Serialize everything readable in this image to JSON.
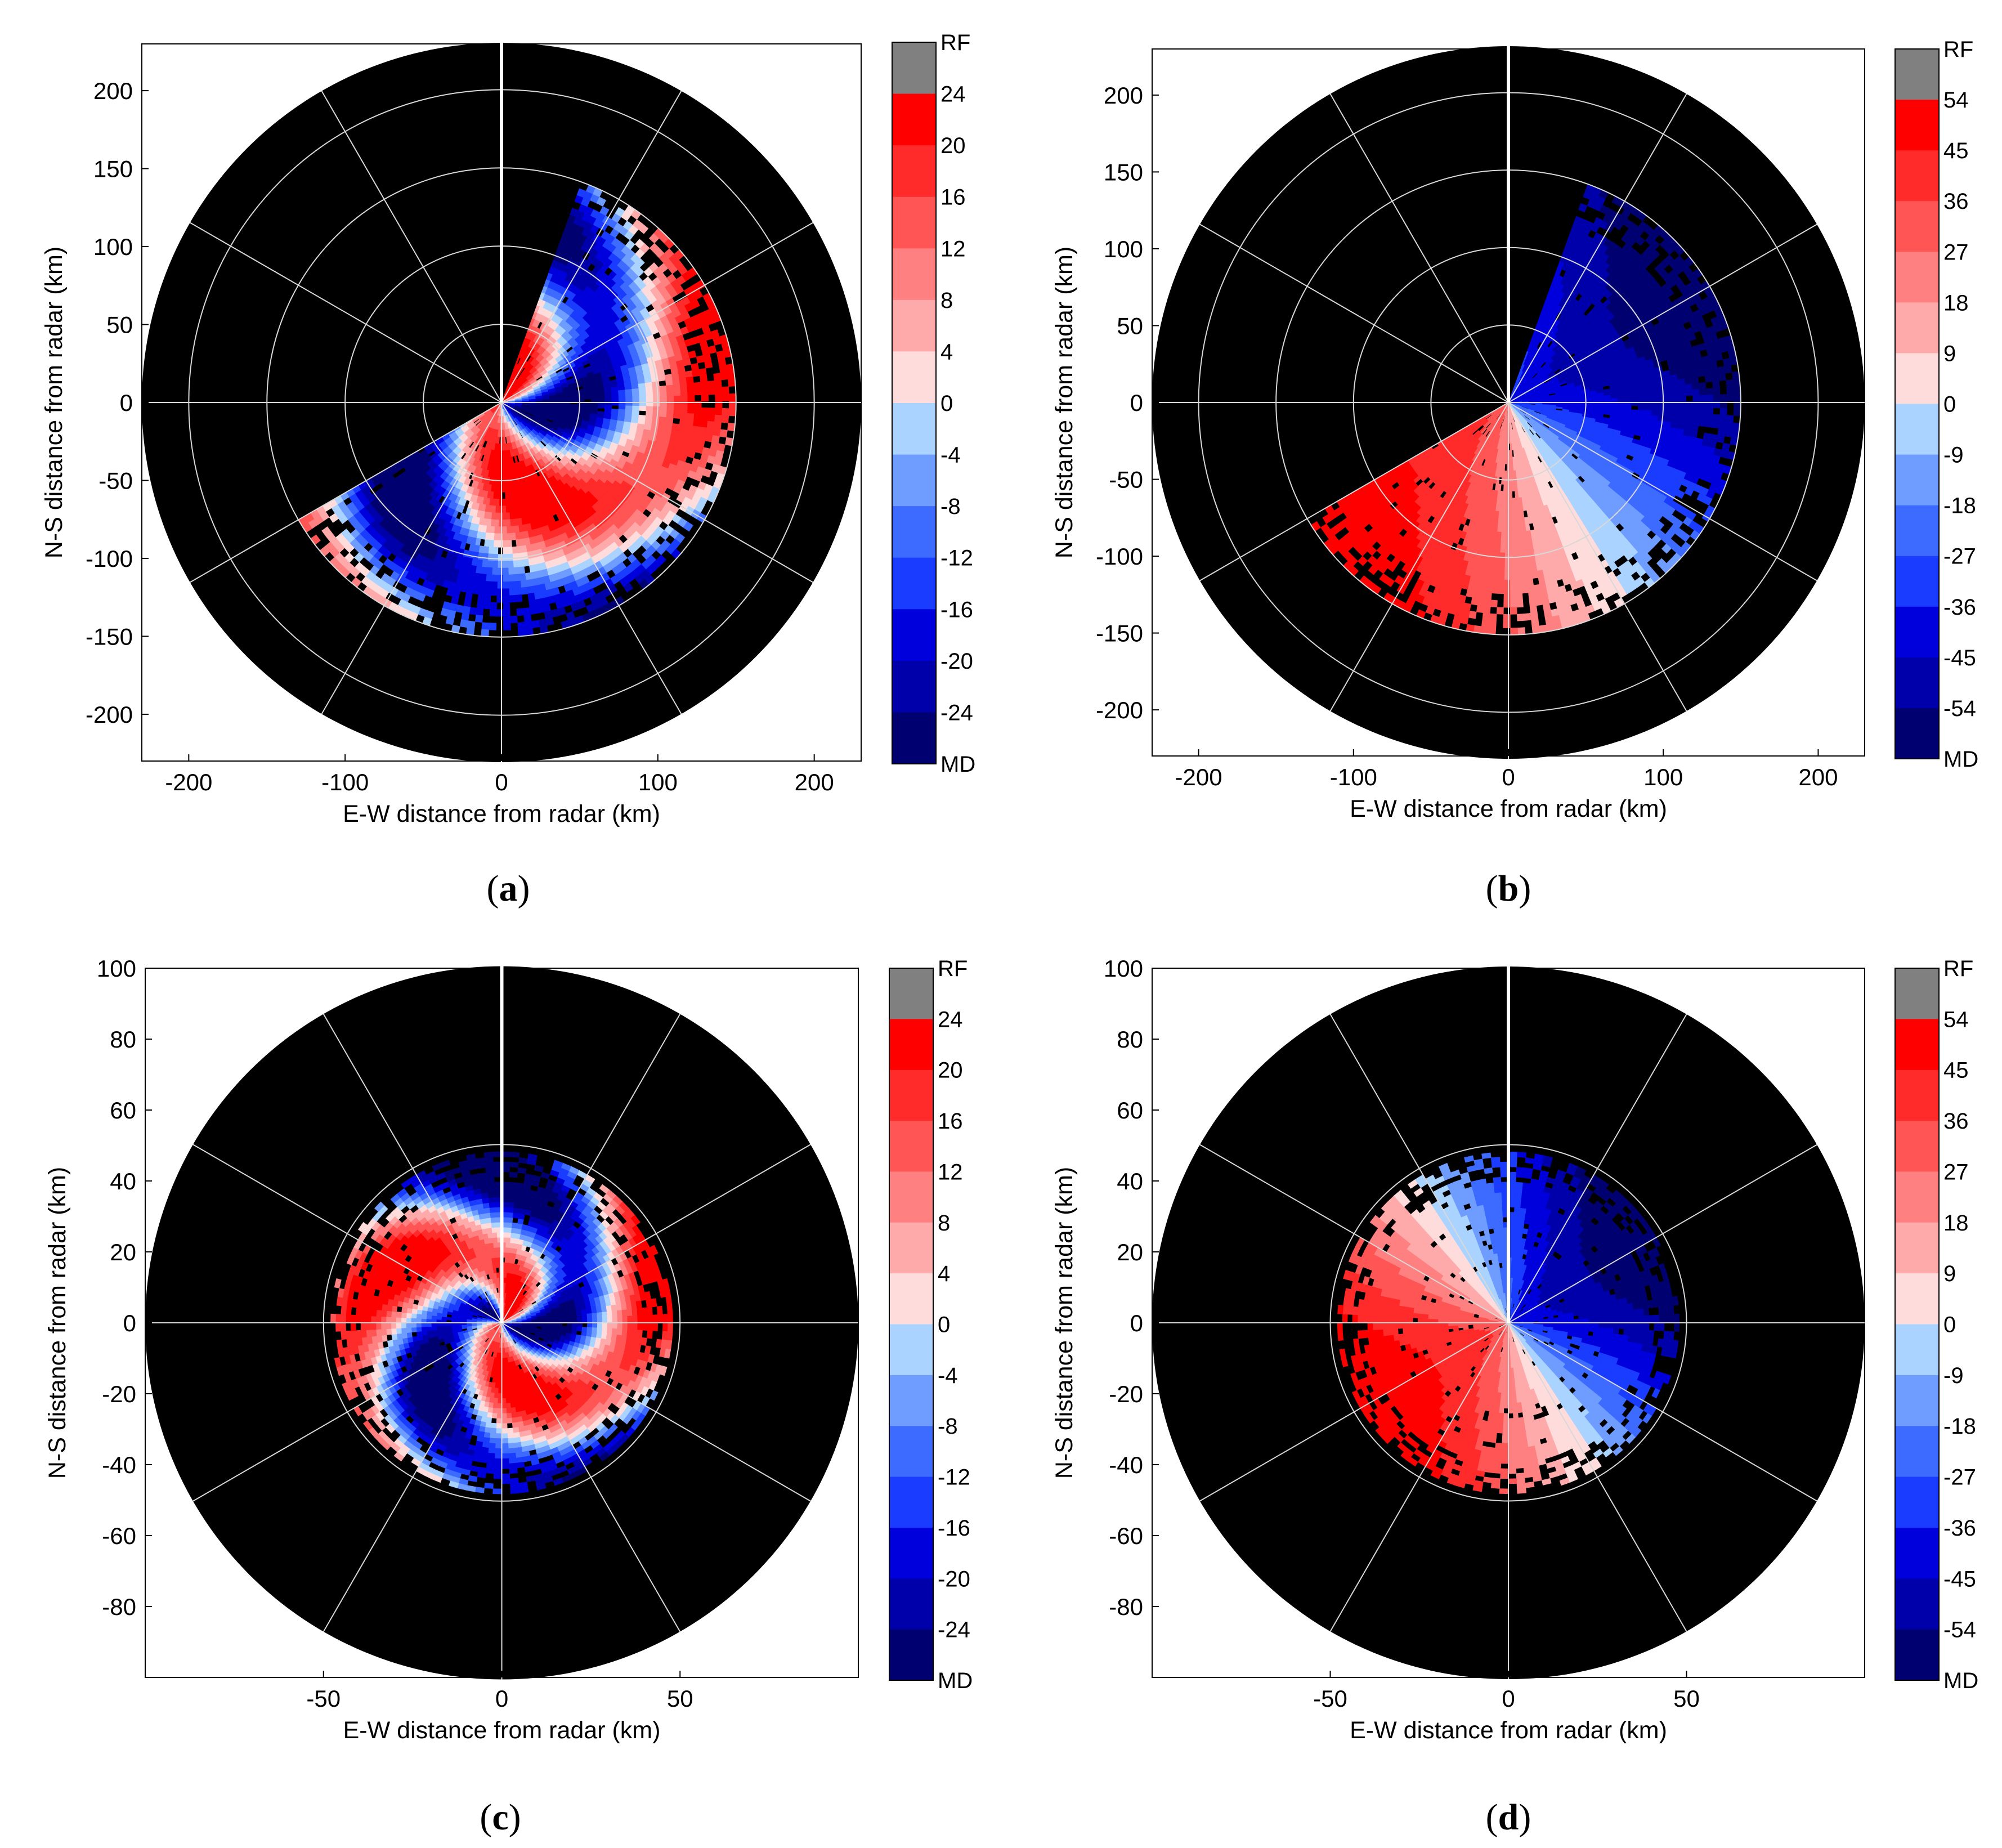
{
  "colors": {
    "plot_bg": "#000000",
    "grid": "#d8d8d8",
    "rf": "#808080",
    "md": "#000000",
    "radial_mark": "#ffffff",
    "positive_palette": [
      "#ffdcdc",
      "#ffaaaa",
      "#ff8080",
      "#ff5555",
      "#ff2a2a",
      "#ff0000"
    ],
    "negative_palette": [
      "#aad4ff",
      "#6f9cff",
      "#3d6bff",
      "#1a3cff",
      "#0000dd",
      "#0000aa",
      "#000070"
    ]
  },
  "chart_data": [
    {
      "panel": "a",
      "label_text": "a",
      "type": "heatmap",
      "xlabel": "E-W distance from radar (km)",
      "ylabel": "N-S distance from radar (km)",
      "xticks": [
        -200,
        -100,
        0,
        100,
        200
      ],
      "yticks": [
        200,
        150,
        100,
        50,
        0,
        -50,
        -100,
        -150,
        -200
      ],
      "xlim": [
        -230,
        230
      ],
      "ylim": [
        -230,
        230
      ],
      "range_rings_km": [
        50,
        100,
        150,
        200
      ],
      "radial_spokes_deg": [
        0,
        30,
        60,
        90,
        120,
        150,
        180,
        210,
        240,
        270,
        300,
        330
      ],
      "colorbar": [
        "RF",
        "24",
        "20",
        "16",
        "12",
        "8",
        "4",
        "0",
        "-4",
        "-8",
        "-12",
        "-16",
        "-20",
        "-24",
        "MD"
      ],
      "echo_extent": {
        "az_start_deg": 20,
        "az_end_deg": 240,
        "max_range_km": 150
      },
      "pattern": "mixed"
    },
    {
      "panel": "b",
      "label_text": "b",
      "type": "heatmap",
      "xlabel": "E-W distance from radar (km)",
      "ylabel": "N-S distance from radar (km)",
      "xticks": [
        -200,
        -100,
        0,
        100,
        200
      ],
      "yticks": [
        200,
        150,
        100,
        50,
        0,
        -50,
        -100,
        -150,
        -200
      ],
      "xlim": [
        -230,
        230
      ],
      "ylim": [
        -230,
        230
      ],
      "range_rings_km": [
        50,
        100,
        150,
        200
      ],
      "radial_spokes_deg": [
        0,
        30,
        60,
        90,
        120,
        150,
        180,
        210,
        240,
        270,
        300,
        330
      ],
      "colorbar": [
        "RF",
        "54",
        "45",
        "36",
        "27",
        "18",
        "9",
        "0",
        "-9",
        "-18",
        "-27",
        "-36",
        "-45",
        "-54",
        "MD"
      ],
      "echo_extent": {
        "az_start_deg": 20,
        "az_end_deg": 240,
        "max_range_km": 150
      },
      "pattern": "dipole"
    },
    {
      "panel": "c",
      "label_text": "c",
      "type": "heatmap",
      "xlabel": "E-W distance from radar (km)",
      "ylabel": "N-S distance from radar (km)",
      "xticks": [
        -50,
        0,
        50
      ],
      "yticks": [
        100,
        80,
        60,
        40,
        20,
        0,
        -20,
        -40,
        -60,
        -80
      ],
      "xlim": [
        -100,
        100
      ],
      "ylim": [
        -100,
        100
      ],
      "range_rings_km": [
        50
      ],
      "radial_spokes_deg": [
        0,
        30,
        60,
        90,
        120,
        150,
        180,
        210,
        240,
        270,
        300,
        330
      ],
      "colorbar": [
        "RF",
        "24",
        "20",
        "16",
        "12",
        "8",
        "4",
        "0",
        "-4",
        "-8",
        "-12",
        "-16",
        "-20",
        "-24",
        "MD"
      ],
      "echo_extent": {
        "az_start_deg": 0,
        "az_end_deg": 360,
        "max_range_km": 48
      },
      "pattern": "mixed"
    },
    {
      "panel": "d",
      "label_text": "d",
      "type": "heatmap",
      "xlabel": "E-W distance from radar (km)",
      "ylabel": "N-S distance from radar (km)",
      "xticks": [
        -50,
        0,
        50
      ],
      "yticks": [
        100,
        80,
        60,
        40,
        20,
        0,
        -20,
        -40,
        -60,
        -80
      ],
      "xlim": [
        -100,
        100
      ],
      "ylim": [
        -100,
        100
      ],
      "range_rings_km": [
        50
      ],
      "radial_spokes_deg": [
        0,
        30,
        60,
        90,
        120,
        150,
        180,
        210,
        240,
        270,
        300,
        330
      ],
      "colorbar": [
        "RF",
        "54",
        "45",
        "36",
        "27",
        "18",
        "9",
        "0",
        "-9",
        "-18",
        "-27",
        "-36",
        "-45",
        "-54",
        "MD"
      ],
      "echo_extent": {
        "az_start_deg": 0,
        "az_end_deg": 360,
        "max_range_km": 48
      },
      "pattern": "dipole"
    }
  ]
}
